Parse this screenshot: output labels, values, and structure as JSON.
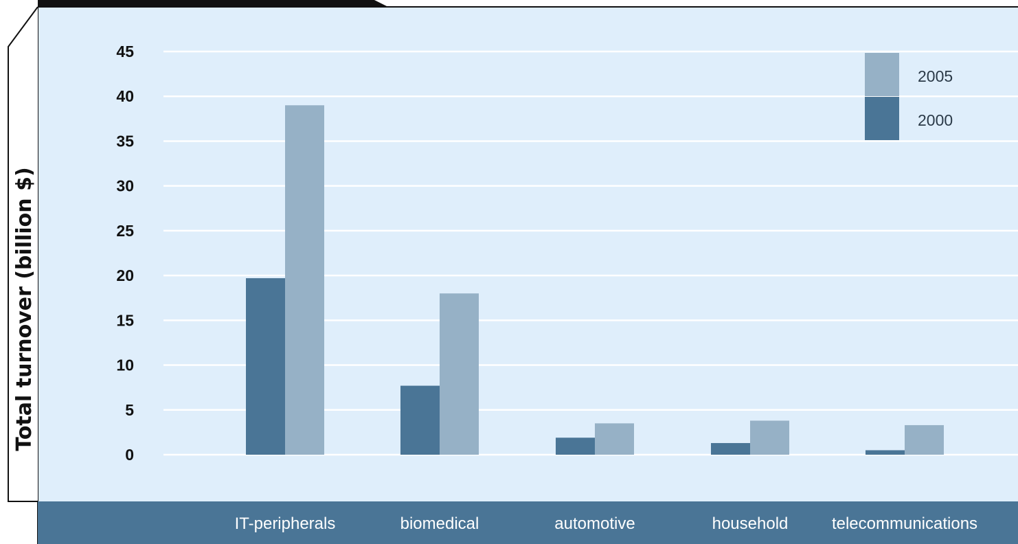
{
  "chart_data": {
    "type": "bar",
    "title": "",
    "xlabel": "",
    "ylabel": "Total turnover (billion $)",
    "ylim": [
      0,
      45
    ],
    "yticks": [
      0,
      5,
      10,
      15,
      20,
      25,
      30,
      35,
      40,
      45
    ],
    "categories": [
      "IT-peripherals",
      "biomedical",
      "automotive",
      "household",
      "telecommunications"
    ],
    "series": [
      {
        "name": "2000",
        "values": [
          19.7,
          7.7,
          1.9,
          1.3,
          0.5
        ],
        "color": "#4a7596"
      },
      {
        "name": "2005",
        "values": [
          39.0,
          18.0,
          3.5,
          3.8,
          3.3
        ],
        "color": "#96b1c6"
      }
    ],
    "legend": {
      "placement": "top-right",
      "order": [
        "2005",
        "2000"
      ]
    },
    "grid": true
  },
  "colors": {
    "plot_background": "#dfeefb",
    "gridline": "#ffffff",
    "axis_band": "#4a7596",
    "frame": "#111111"
  }
}
